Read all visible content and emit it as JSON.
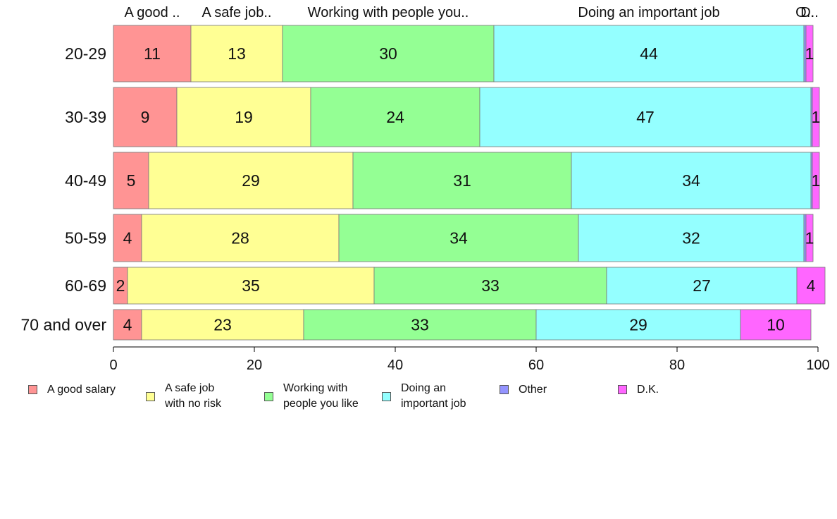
{
  "chart_data": {
    "type": "bar",
    "orientation": "horizontal",
    "stacked": true,
    "categories": [
      "20-29",
      "30-39",
      "40-49",
      "50-59",
      "60-69",
      "70 and over"
    ],
    "series": [
      {
        "name": "A good salary",
        "top_label": "A good ..",
        "values": [
          11,
          9,
          5,
          4,
          2,
          4
        ],
        "color": "#ff9494"
      },
      {
        "name": "A safe job\nwith no risk",
        "top_label": "A safe job..",
        "values": [
          13,
          19,
          29,
          28,
          35,
          23
        ],
        "color": "#ffff94"
      },
      {
        "name": "Working with\npeople you like",
        "top_label": "Working with people you..",
        "values": [
          30,
          24,
          31,
          34,
          33,
          33
        ],
        "color": "#94ff94"
      },
      {
        "name": "Doing an\nimportant job",
        "top_label": "Doing an important job",
        "values": [
          44,
          47,
          34,
          32,
          27,
          29
        ],
        "color": "#94ffff"
      },
      {
        "name": "Other",
        "top_label": "O..",
        "values": [
          0.3,
          0.2,
          0.2,
          0.3,
          0.0,
          0.0
        ],
        "color": "#9494ff"
      },
      {
        "name": "D.K.",
        "top_label": "D..",
        "values": [
          1,
          1,
          1,
          1,
          4,
          10
        ],
        "color": "#ff66ff"
      }
    ],
    "data_labels": [
      [
        "11",
        "13",
        "30",
        "44",
        "",
        "1"
      ],
      [
        "9",
        "19",
        "24",
        "47",
        "",
        "1"
      ],
      [
        "5",
        "29",
        "31",
        "34",
        "",
        "1"
      ],
      [
        "4",
        "28",
        "34",
        "32",
        "",
        "1"
      ],
      [
        "2",
        "35",
        "33",
        "27",
        "",
        "4"
      ],
      [
        "4",
        "23",
        "33",
        "29",
        "",
        "10"
      ]
    ],
    "xlim": [
      0,
      100
    ],
    "xticks": [
      0,
      20,
      40,
      60,
      80,
      100
    ],
    "xlabel": "",
    "ylabel": "",
    "title": "",
    "grid": false,
    "legend_position": "bottom"
  }
}
